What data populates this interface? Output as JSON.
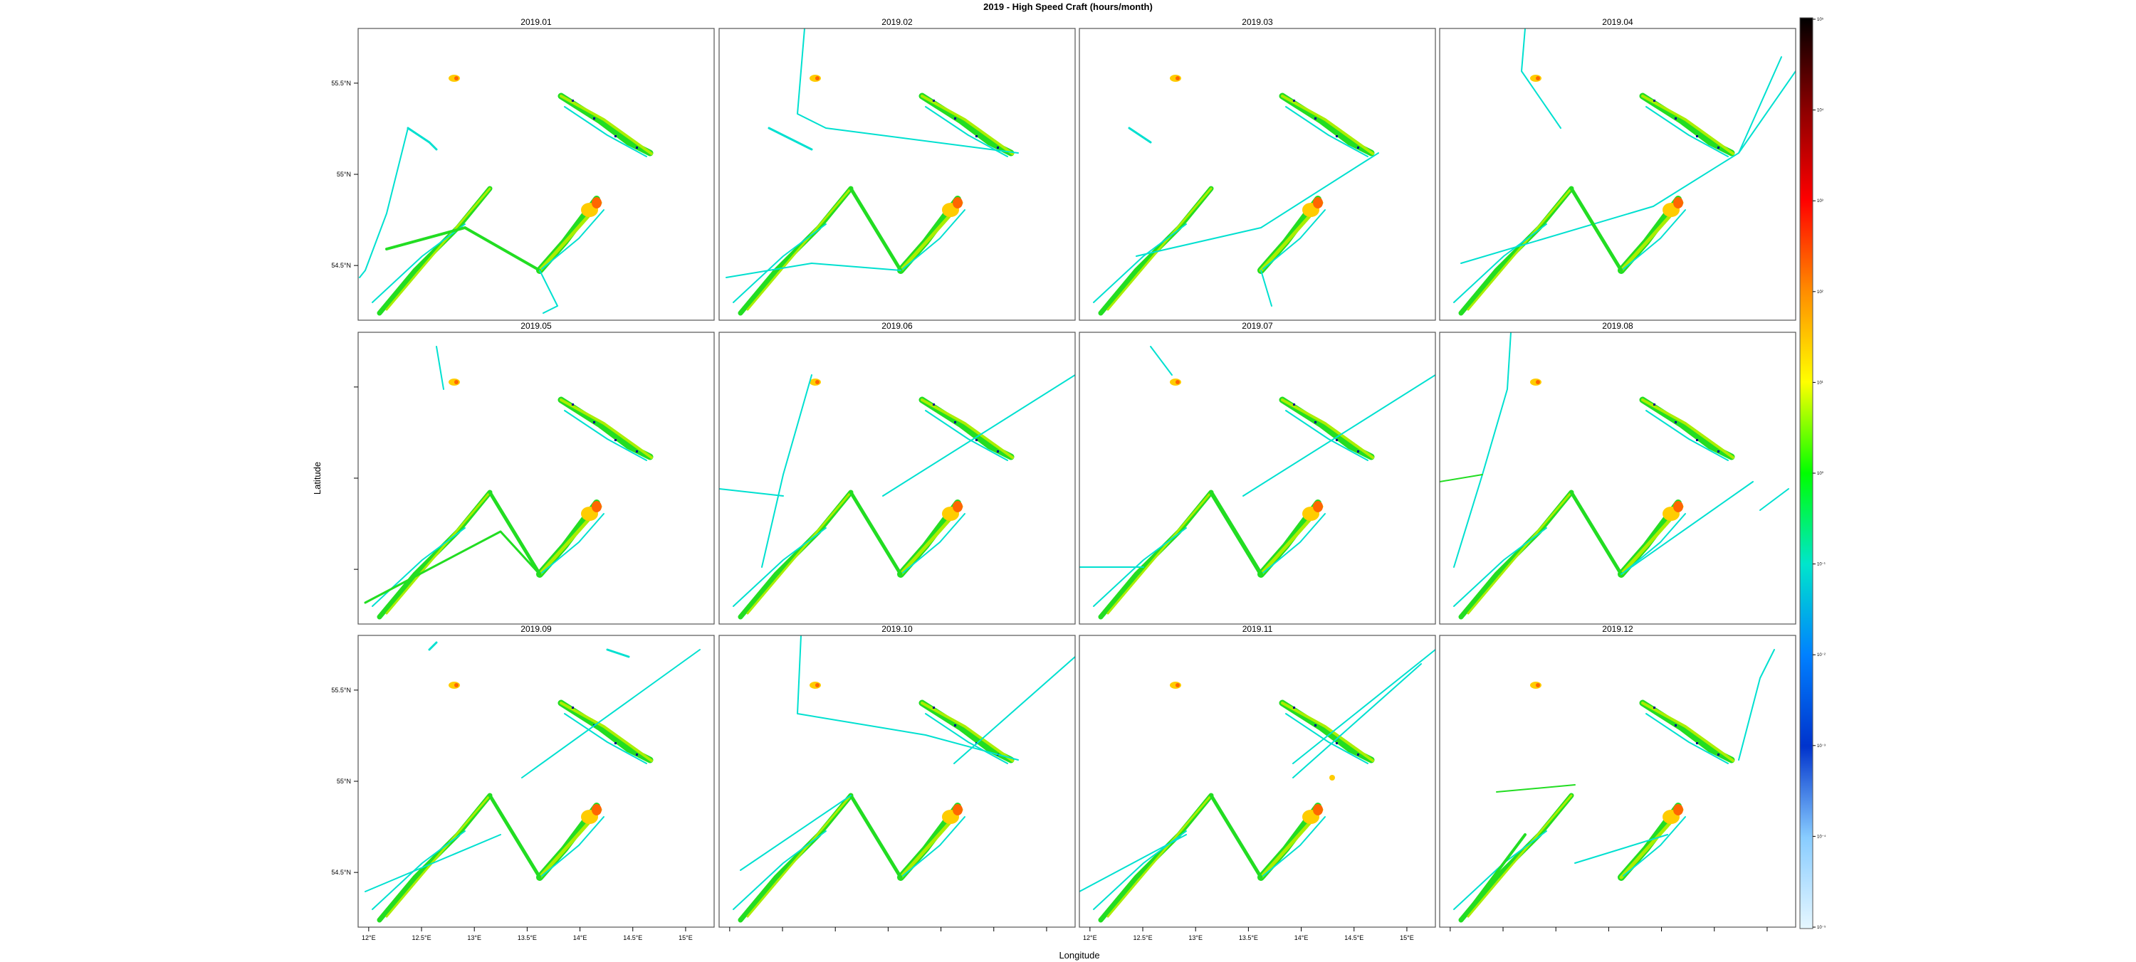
{
  "title": "2019 - High Speed Craft (hours/month)",
  "xlabel": "Longitude",
  "ylabel": "Latitude",
  "lon_ticks": [
    "12°E",
    "12.5°E",
    "13°E",
    "13.5°E",
    "14°E",
    "14.5°E",
    "15°E"
  ],
  "lat_ticks": [
    "55.5°N",
    "55°N",
    "54.5°N"
  ],
  "colorbar": {
    "labels": [
      "10⁵",
      "10⁴",
      "10³",
      "10²",
      "10¹",
      "10⁰",
      "10⁻¹",
      "10⁻²",
      "10⁻³",
      "10⁻⁴",
      "10⁻⁵"
    ],
    "stops": [
      "#000000",
      "#8b0000",
      "#ff0000",
      "#ff8c00",
      "#ffff00",
      "#00ff00",
      "#00e5cc",
      "#0080ff",
      "#0033cc",
      "#88ccff",
      "#e6f7ff"
    ]
  },
  "colors": {
    "track_low": "#00e0d0",
    "track_mid": "#22dd22",
    "track_high": "#aaee00",
    "hotspot": "#ffcc00",
    "hot": "#ff6600",
    "dark": "#000088"
  },
  "panels": [
    {
      "label": "2019.01"
    },
    {
      "label": "2019.02"
    },
    {
      "label": "2019.03"
    },
    {
      "label": "2019.04"
    },
    {
      "label": "2019.05"
    },
    {
      "label": "2019.06"
    },
    {
      "label": "2019.07"
    },
    {
      "label": "2019.08"
    },
    {
      "label": "2019.09"
    },
    {
      "label": "2019.10"
    },
    {
      "label": "2019.11"
    },
    {
      "label": "2019.12"
    }
  ]
}
